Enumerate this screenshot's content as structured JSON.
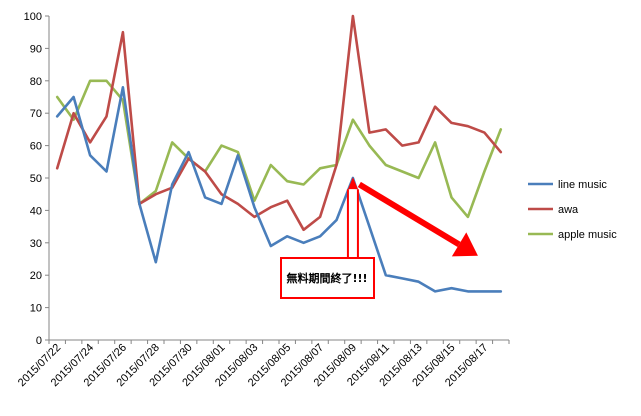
{
  "chart_data": {
    "type": "line",
    "title": "",
    "xlabel": "",
    "ylabel": "",
    "ylim": [
      0,
      100
    ],
    "yticks": [
      0,
      10,
      20,
      30,
      40,
      50,
      60,
      70,
      80,
      90,
      100
    ],
    "grid": false,
    "legend_position": "right",
    "x": [
      "2015/07/22",
      "2015/07/23",
      "2015/07/24",
      "2015/07/25",
      "2015/07/26",
      "2015/07/27",
      "2015/07/28",
      "2015/07/29",
      "2015/07/30",
      "2015/07/31",
      "2015/08/01",
      "2015/08/02",
      "2015/08/03",
      "2015/08/04",
      "2015/08/05",
      "2015/08/06",
      "2015/08/07",
      "2015/08/08",
      "2015/08/09",
      "2015/08/10",
      "2015/08/11",
      "2015/08/12",
      "2015/08/13",
      "2015/08/14",
      "2015/08/15",
      "2015/08/16",
      "2015/08/17",
      "2015/08/18"
    ],
    "x_tick_labels": [
      "2015/07/22",
      "2015/07/24",
      "2015/07/26",
      "2015/07/28",
      "2015/07/30",
      "2015/08/01",
      "2015/08/03",
      "2015/08/05",
      "2015/08/07",
      "2015/08/09",
      "2015/08/11",
      "2015/08/13",
      "2015/08/15",
      "2015/08/17"
    ],
    "series": [
      {
        "name": "line music",
        "color": "#4a7ebb",
        "values": [
          69,
          75,
          57,
          52,
          78,
          42,
          24,
          48,
          58,
          44,
          42,
          57,
          41,
          29,
          32,
          30,
          32,
          37,
          50,
          35,
          20,
          19,
          18,
          15,
          16,
          15,
          15,
          15
        ]
      },
      {
        "name": "awa",
        "color": "#be4b48",
        "values": [
          53,
          70,
          61,
          69,
          95,
          42,
          45,
          47,
          56,
          52,
          45,
          42,
          38,
          41,
          43,
          34,
          38,
          54,
          100,
          64,
          65,
          60,
          61,
          72,
          67,
          66,
          64,
          58
        ]
      },
      {
        "name": "apple music",
        "color": "#98b954",
        "values": [
          75,
          68,
          80,
          80,
          74,
          42,
          46,
          61,
          56,
          52,
          60,
          58,
          43,
          54,
          49,
          48,
          53,
          54,
          68,
          60,
          54,
          52,
          50,
          61,
          44,
          38,
          52,
          65
        ]
      }
    ],
    "annotation": {
      "text": "無料期間終了!!!",
      "box_color": "#ff0000",
      "arrow_color": "#ff0000",
      "points_to": {
        "x": "2015/08/09",
        "y": 49
      },
      "trend_arrow": {
        "from": {
          "x": "2015/08/10",
          "y": 48
        },
        "to": {
          "x": "2015/08/16",
          "y": 26
        }
      }
    }
  }
}
